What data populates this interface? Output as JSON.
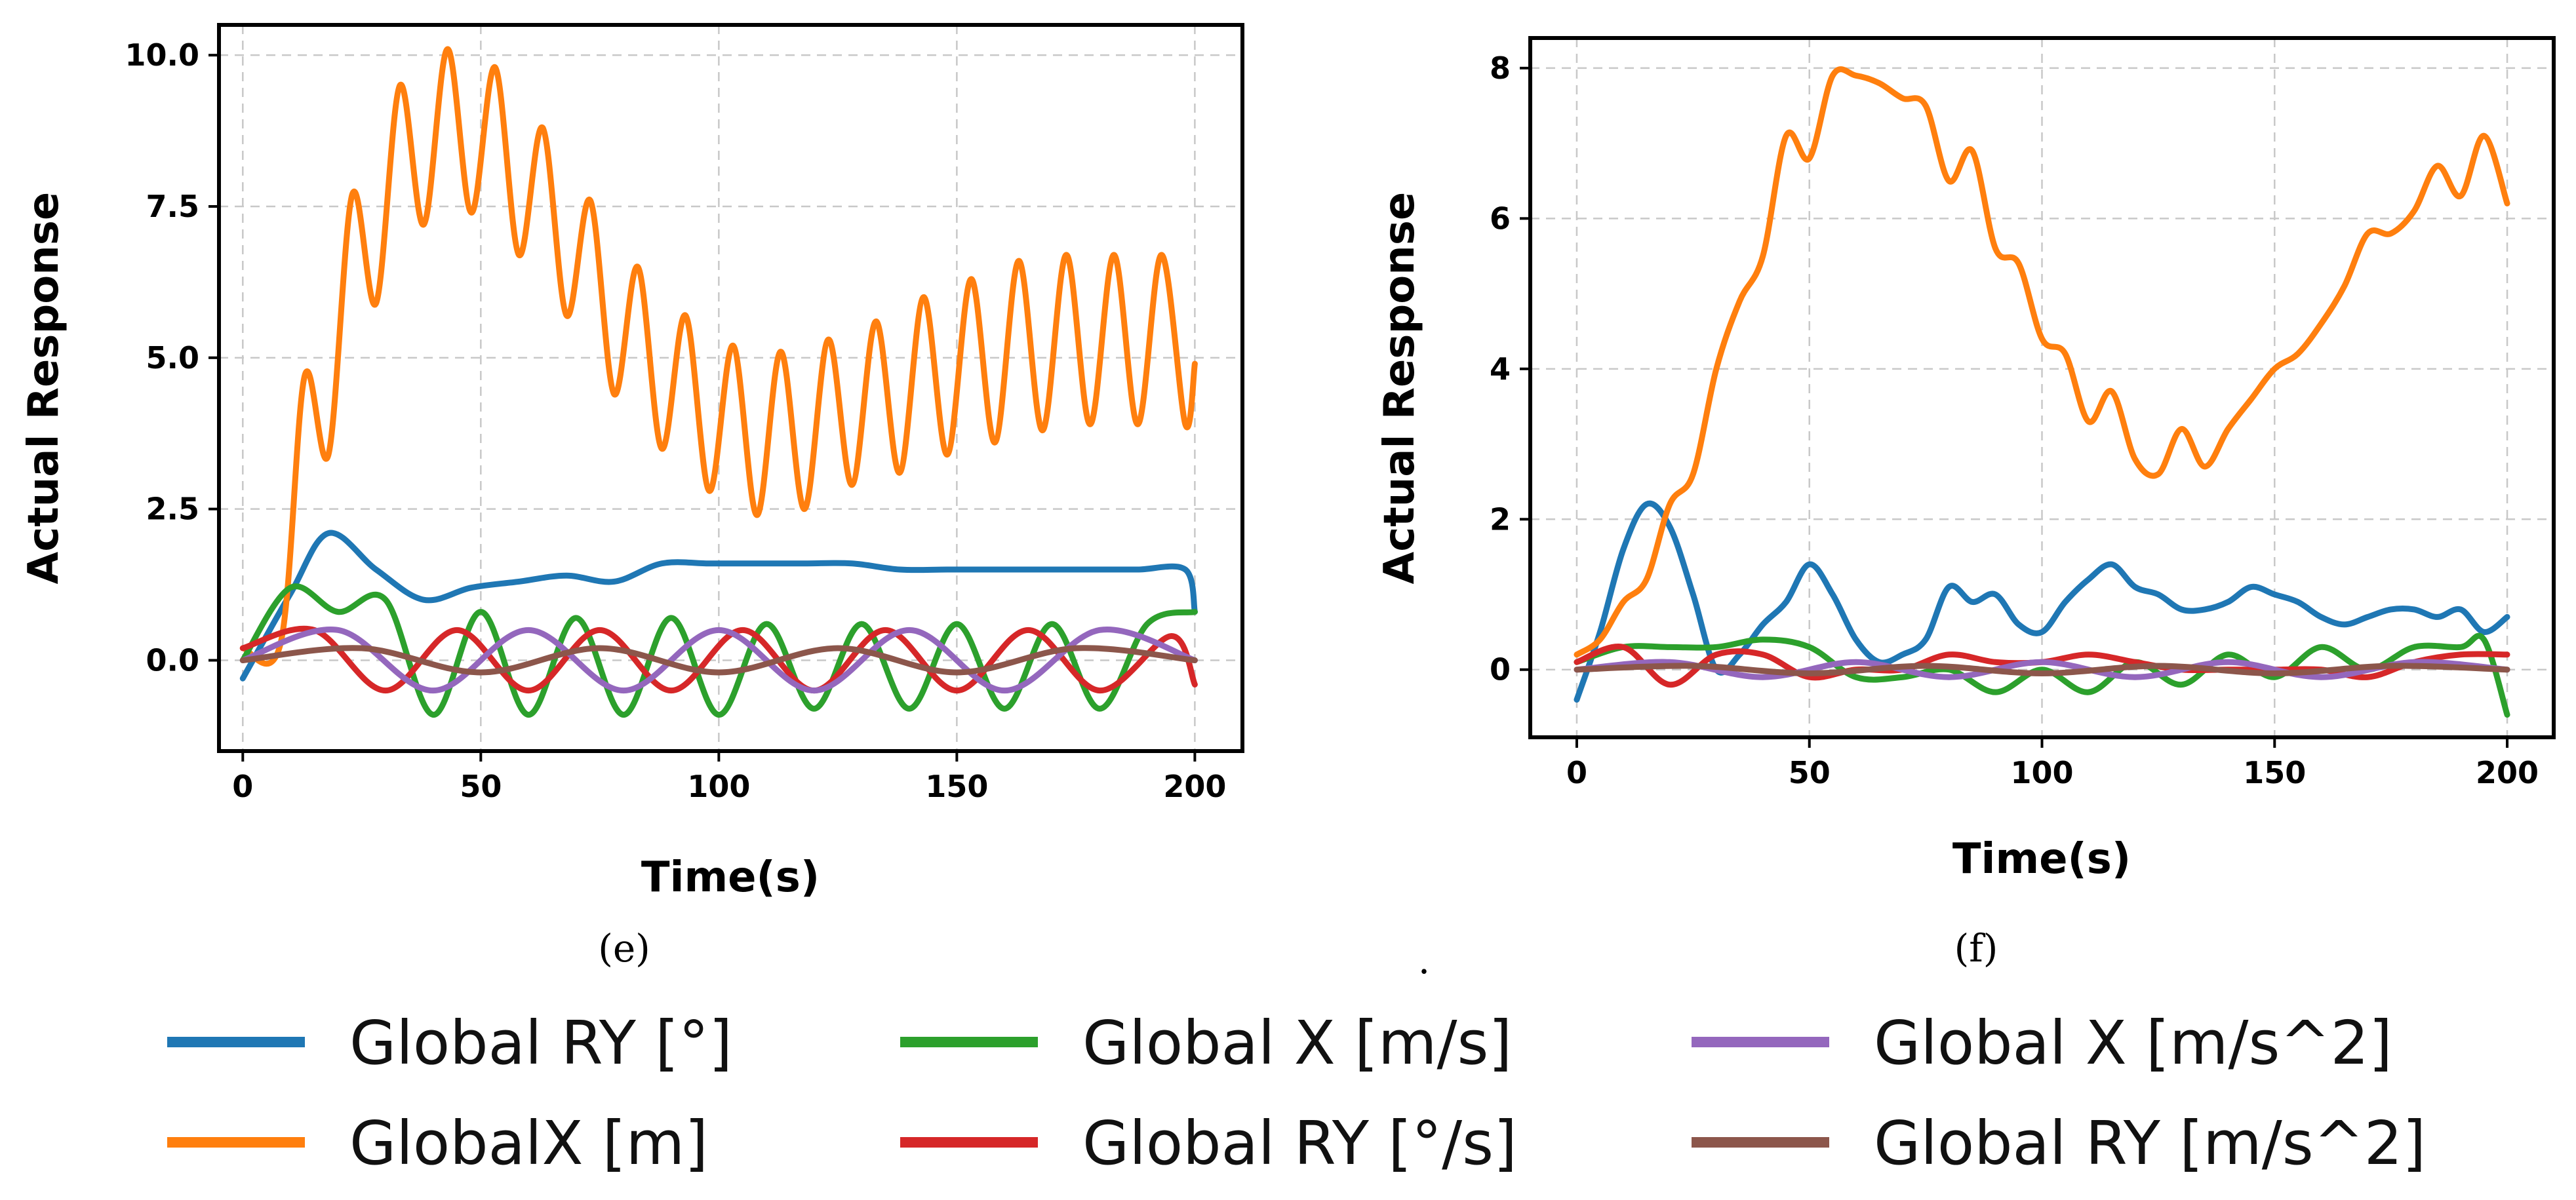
{
  "chart_data": [
    {
      "panel": "(e)",
      "type": "line",
      "xlabel": "Time(s)",
      "ylabel": "Actual Response",
      "xlim": [
        -5,
        210
      ],
      "ylim": [
        -1.5,
        10.5
      ],
      "xticks": [
        0,
        50,
        100,
        150,
        200
      ],
      "xtick_labels": [
        "0",
        "50",
        "100",
        "150",
        "200"
      ],
      "yticks": [
        0.0,
        2.5,
        5.0,
        7.5,
        10.0
      ],
      "ytick_labels": [
        "0.0",
        "2.5",
        "5.0",
        "7.5",
        "10.0"
      ],
      "grid": true,
      "series": [
        {
          "name": "Global RY  [°]",
          "color": "#1f77b4",
          "x": [
            0,
            10,
            18,
            28,
            38,
            48,
            58,
            68,
            78,
            88,
            98,
            108,
            118,
            128,
            138,
            148,
            158,
            168,
            178,
            188,
            198,
            200
          ],
          "y": [
            -0.3,
            1.1,
            2.1,
            1.5,
            1.0,
            1.2,
            1.3,
            1.4,
            1.3,
            1.6,
            1.6,
            1.6,
            1.6,
            1.6,
            1.5,
            1.5,
            1.5,
            1.5,
            1.5,
            1.5,
            1.5,
            0.8
          ]
        },
        {
          "name": "GlobalX [m]",
          "color": "#ff7f0e",
          "x": [
            0,
            8,
            13,
            18,
            23,
            28,
            33,
            38,
            43,
            48,
            53,
            58,
            63,
            68,
            73,
            78,
            83,
            88,
            93,
            98,
            103,
            108,
            113,
            118,
            123,
            128,
            133,
            138,
            143,
            148,
            153,
            158,
            163,
            168,
            173,
            178,
            183,
            188,
            193,
            198,
            200
          ],
          "y": [
            0.2,
            0.3,
            4.7,
            3.4,
            7.7,
            5.9,
            9.5,
            7.2,
            10.1,
            7.4,
            9.8,
            6.7,
            8.8,
            5.7,
            7.6,
            4.4,
            6.5,
            3.5,
            5.7,
            2.8,
            5.2,
            2.4,
            5.1,
            2.5,
            5.3,
            2.9,
            5.6,
            3.1,
            6.0,
            3.4,
            6.3,
            3.6,
            6.6,
            3.8,
            6.7,
            3.9,
            6.7,
            3.9,
            6.7,
            3.9,
            4.9
          ]
        },
        {
          "name": "Global X [m/s]",
          "color": "#2ca02c",
          "x": [
            0,
            10,
            20,
            30,
            40,
            50,
            60,
            70,
            80,
            90,
            100,
            110,
            120,
            130,
            140,
            150,
            160,
            170,
            180,
            190,
            200
          ],
          "y": [
            0.0,
            1.2,
            0.8,
            1.0,
            -0.9,
            0.8,
            -0.9,
            0.7,
            -0.9,
            0.7,
            -0.9,
            0.6,
            -0.8,
            0.6,
            -0.8,
            0.6,
            -0.8,
            0.6,
            -0.8,
            0.6,
            0.8
          ]
        },
        {
          "name": "Global RY  [°/s]",
          "color": "#d62728",
          "x": [
            0,
            15,
            30,
            45,
            60,
            75,
            90,
            105,
            120,
            135,
            150,
            165,
            180,
            195,
            200
          ],
          "y": [
            0.2,
            0.5,
            -0.5,
            0.5,
            -0.5,
            0.5,
            -0.5,
            0.5,
            -0.5,
            0.5,
            -0.5,
            0.5,
            -0.5,
            0.4,
            -0.4
          ]
        },
        {
          "name": "Global X [m/s^2]",
          "color": "#9467bd",
          "x": [
            0,
            20,
            40,
            60,
            80,
            100,
            120,
            140,
            160,
            180,
            200
          ],
          "y": [
            0.0,
            0.5,
            -0.5,
            0.5,
            -0.5,
            0.5,
            -0.5,
            0.5,
            -0.5,
            0.5,
            0.0
          ]
        },
        {
          "name": "Global RY [m/s^2]",
          "color": "#8c564b",
          "x": [
            0,
            25,
            50,
            75,
            100,
            125,
            150,
            175,
            200
          ],
          "y": [
            0.0,
            0.2,
            -0.2,
            0.2,
            -0.2,
            0.2,
            -0.2,
            0.2,
            0.0
          ]
        }
      ]
    },
    {
      "panel": "(f)",
      "type": "line",
      "xlabel": "Time(s)",
      "ylabel": "Actual Response",
      "xlim": [
        -10,
        210
      ],
      "ylim": [
        -0.9,
        8.4
      ],
      "xticks": [
        0,
        50,
        100,
        150,
        200
      ],
      "xtick_labels": [
        "0",
        "50",
        "100",
        "150",
        "200"
      ],
      "yticks": [
        0,
        2,
        4,
        6,
        8
      ],
      "ytick_labels": [
        "0",
        "2",
        "4",
        "6",
        "8"
      ],
      "grid": true,
      "series": [
        {
          "name": "Global RY  [°]",
          "color": "#1f77b4",
          "x": [
            0,
            5,
            10,
            15,
            20,
            25,
            30,
            35,
            40,
            45,
            50,
            55,
            60,
            65,
            70,
            75,
            80,
            85,
            90,
            95,
            100,
            105,
            110,
            115,
            120,
            125,
            130,
            135,
            140,
            145,
            150,
            155,
            160,
            165,
            170,
            175,
            180,
            185,
            190,
            195,
            200
          ],
          "y": [
            -0.4,
            0.5,
            1.6,
            2.2,
            1.9,
            1.0,
            0.0,
            0.2,
            0.6,
            0.9,
            1.4,
            1.0,
            0.4,
            0.1,
            0.2,
            0.4,
            1.1,
            0.9,
            1.0,
            0.6,
            0.5,
            0.9,
            1.2,
            1.4,
            1.1,
            1.0,
            0.8,
            0.8,
            0.9,
            1.1,
            1.0,
            0.9,
            0.7,
            0.6,
            0.7,
            0.8,
            0.8,
            0.7,
            0.8,
            0.5,
            0.7
          ]
        },
        {
          "name": "GlobalX [m]",
          "color": "#ff7f0e",
          "x": [
            0,
            5,
            10,
            15,
            20,
            25,
            30,
            35,
            40,
            45,
            50,
            55,
            60,
            65,
            70,
            75,
            80,
            85,
            90,
            95,
            100,
            105,
            110,
            115,
            120,
            125,
            130,
            135,
            140,
            145,
            150,
            155,
            160,
            165,
            170,
            175,
            180,
            185,
            190,
            195,
            200
          ],
          "y": [
            0.2,
            0.4,
            0.9,
            1.2,
            2.2,
            2.6,
            4.0,
            4.9,
            5.5,
            7.1,
            6.8,
            7.9,
            7.9,
            7.8,
            7.6,
            7.5,
            6.5,
            6.9,
            5.6,
            5.4,
            4.4,
            4.2,
            3.3,
            3.7,
            2.8,
            2.6,
            3.2,
            2.7,
            3.2,
            3.6,
            4.0,
            4.2,
            4.6,
            5.1,
            5.8,
            5.8,
            6.1,
            6.7,
            6.3,
            7.1,
            6.2
          ]
        },
        {
          "name": "Global X [m/s]",
          "color": "#2ca02c",
          "x": [
            0,
            10,
            20,
            30,
            40,
            50,
            60,
            70,
            80,
            90,
            100,
            110,
            120,
            130,
            140,
            150,
            160,
            170,
            180,
            190,
            195,
            200
          ],
          "y": [
            0.1,
            0.3,
            0.3,
            0.3,
            0.4,
            0.3,
            -0.1,
            -0.1,
            0.0,
            -0.3,
            0.0,
            -0.3,
            0.1,
            -0.2,
            0.2,
            -0.1,
            0.3,
            0.0,
            0.3,
            0.3,
            0.4,
            -0.6
          ]
        },
        {
          "name": "Global RY  [°/s]",
          "color": "#d62728",
          "x": [
            0,
            10,
            20,
            30,
            40,
            50,
            60,
            70,
            80,
            90,
            100,
            110,
            120,
            130,
            140,
            150,
            160,
            170,
            180,
            190,
            200
          ],
          "y": [
            0.1,
            0.3,
            -0.2,
            0.2,
            0.2,
            -0.1,
            0.0,
            0.0,
            0.2,
            0.1,
            0.1,
            0.2,
            0.1,
            0.0,
            0.0,
            0.0,
            0.0,
            -0.1,
            0.1,
            0.2,
            0.2
          ]
        },
        {
          "name": "Global X [m/s^2]",
          "color": "#9467bd",
          "x": [
            0,
            20,
            40,
            60,
            80,
            100,
            120,
            140,
            160,
            180,
            200
          ],
          "y": [
            0.0,
            0.1,
            -0.1,
            0.1,
            -0.1,
            0.1,
            -0.1,
            0.1,
            -0.1,
            0.1,
            0.0
          ]
        },
        {
          "name": "Global RY [m/s^2]",
          "color": "#8c564b",
          "x": [
            0,
            25,
            50,
            75,
            100,
            125,
            150,
            175,
            200
          ],
          "y": [
            0.0,
            0.05,
            -0.05,
            0.05,
            -0.05,
            0.05,
            -0.05,
            0.05,
            0.0
          ]
        }
      ]
    }
  ],
  "captions": {
    "left": "(e)",
    "right": "(f)",
    "middle": "."
  },
  "legend": {
    "placement": "bottom",
    "entries": [
      {
        "label": "Global RY  [°]",
        "color": "#1f77b4"
      },
      {
        "label": "GlobalX [m]",
        "color": "#ff7f0e"
      },
      {
        "label": "Global X [m/s]",
        "color": "#2ca02c"
      },
      {
        "label": "Global RY  [°/s]",
        "color": "#d62728"
      },
      {
        "label": "Global X [m/s^2]",
        "color": "#9467bd"
      },
      {
        "label": "Global RY [m/s^2]",
        "color": "#8c564b"
      }
    ]
  }
}
